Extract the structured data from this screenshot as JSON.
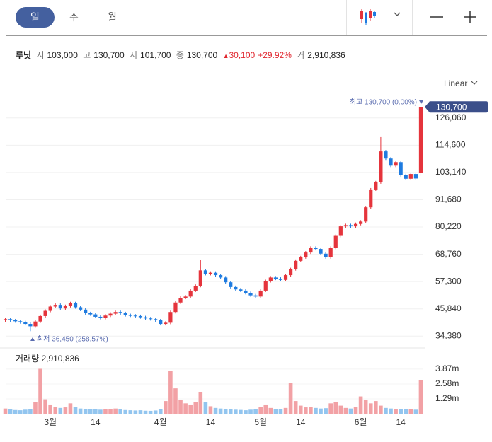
{
  "header": {
    "tabs": [
      "일",
      "주",
      "월"
    ],
    "scale": "Linear"
  },
  "info": {
    "name": "루닛",
    "open_label": "시",
    "open": "103,000",
    "high_label": "고",
    "high": "130,700",
    "low_label": "저",
    "low": "101,700",
    "close_label": "종",
    "close": "130,700",
    "change": "30,100",
    "change_pct": "+29.92%",
    "volume_label": "거",
    "volume": "2,910,836"
  },
  "chart_data": [
    {
      "type": "candlestick",
      "up_color": "#e5343c",
      "down_color": "#1e7be0",
      "open": [
        41000,
        41500,
        41000,
        40600,
        40200,
        39500,
        38500,
        40500,
        42800,
        45000,
        46800,
        47500,
        46000,
        47000,
        48200,
        46500,
        45500,
        44000,
        43500,
        42500,
        42000,
        43000,
        43800,
        44500,
        44000,
        43200,
        43000,
        42800,
        42300,
        41800,
        41500,
        41000,
        39500,
        40000,
        44500,
        48500,
        50500,
        51000,
        53500,
        55500,
        62000,
        60500,
        61000,
        60000,
        59000,
        57000,
        55000,
        54000,
        53500,
        52500,
        51500,
        51000,
        53500,
        57500,
        59000,
        58500,
        58000,
        60000,
        62500,
        66000,
        67500,
        69500,
        71500,
        71000,
        69000,
        67500,
        71500,
        76500,
        80500,
        81000,
        80500,
        81500,
        82500,
        88500,
        96000,
        99000,
        112000,
        109000,
        106000,
        107500,
        102000,
        100500,
        102500,
        103000
      ],
      "high": [
        42100,
        42100,
        41600,
        41200,
        40800,
        40100,
        41100,
        43400,
        45600,
        47400,
        48100,
        48100,
        47600,
        48800,
        48800,
        47100,
        46100,
        44600,
        44100,
        43100,
        43600,
        44400,
        45100,
        45100,
        44600,
        43800,
        43600,
        43400,
        42900,
        42400,
        42100,
        41600,
        40600,
        45100,
        49100,
        51100,
        51600,
        54100,
        56100,
        66500,
        62600,
        61600,
        61600,
        60600,
        59600,
        57600,
        55600,
        54600,
        54100,
        53100,
        52100,
        54100,
        58100,
        59600,
        59600,
        59100,
        60600,
        63100,
        66600,
        68100,
        70100,
        72100,
        72100,
        71600,
        69600,
        72100,
        77100,
        81100,
        81600,
        81600,
        82100,
        83100,
        89100,
        96600,
        99600,
        118000,
        112600,
        109600,
        108100,
        108100,
        102600,
        103100,
        103100,
        130700
      ],
      "low": [
        40400,
        40400,
        40000,
        39600,
        38900,
        36450,
        37900,
        39900,
        42200,
        44400,
        46200,
        45400,
        45400,
        46400,
        45900,
        44900,
        43400,
        42900,
        41900,
        41400,
        41400,
        42400,
        43200,
        43400,
        42600,
        42400,
        42200,
        41700,
        41200,
        40900,
        40400,
        38900,
        38900,
        39400,
        43900,
        47900,
        49900,
        50400,
        52900,
        54900,
        59900,
        59900,
        59400,
        58400,
        56400,
        54400,
        53400,
        52900,
        51900,
        50900,
        50400,
        50400,
        52900,
        56900,
        57900,
        57400,
        57400,
        59400,
        61900,
        65400,
        66900,
        68900,
        70400,
        68400,
        66900,
        66900,
        70900,
        75900,
        79900,
        79900,
        79900,
        80900,
        81900,
        87900,
        95400,
        98400,
        108400,
        105400,
        105400,
        101400,
        99900,
        99900,
        100000,
        101700
      ],
      "close": [
        41500,
        41000,
        40600,
        40200,
        39500,
        38500,
        40500,
        42800,
        45000,
        46800,
        47500,
        46000,
        47000,
        48200,
        46500,
        45500,
        44000,
        43500,
        42500,
        42000,
        43000,
        43800,
        44500,
        44000,
        43200,
        43000,
        42800,
        42300,
        41800,
        41500,
        41000,
        39500,
        40000,
        44500,
        48500,
        50500,
        51000,
        53500,
        55500,
        62000,
        60500,
        61000,
        60000,
        59000,
        57000,
        55000,
        54000,
        53500,
        52500,
        51500,
        51000,
        53500,
        57500,
        59000,
        58500,
        58000,
        60000,
        62500,
        66000,
        67500,
        69500,
        71500,
        71000,
        69000,
        67500,
        71500,
        76500,
        80500,
        81000,
        80500,
        81500,
        82500,
        88500,
        96000,
        99000,
        112000,
        109000,
        106000,
        107500,
        102000,
        100500,
        102500,
        100600,
        130700
      ],
      "ylim": [
        30000,
        137000
      ],
      "yticks": [
        {
          "value": 34380,
          "label": "34,380"
        },
        {
          "value": 45840,
          "label": "45,840"
        },
        {
          "value": 57300,
          "label": "57,300"
        },
        {
          "value": 68760,
          "label": "68,760"
        },
        {
          "value": 80220,
          "label": "80,220"
        },
        {
          "value": 91680,
          "label": "91,680"
        },
        {
          "value": 103140,
          "label": "103,140"
        },
        {
          "value": 114600,
          "label": "114,600"
        },
        {
          "value": 126060,
          "label": "126,060"
        }
      ],
      "grid": true,
      "high_label": "최고 130,700 (0.00%)",
      "low_label": "최저 36,450 (258.57%)",
      "last_price_label": "130,700"
    },
    {
      "type": "bar",
      "title": "거래량 2,910,836",
      "up_color": "#f2a1a5",
      "down_color": "#92c5ef",
      "categories": [
        null,
        null,
        null,
        null,
        null,
        null,
        null,
        null,
        null,
        "3월",
        null,
        null,
        null,
        null,
        null,
        null,
        null,
        null,
        "14",
        null,
        null,
        null,
        null,
        null,
        null,
        null,
        null,
        null,
        null,
        null,
        null,
        "4월",
        null,
        null,
        null,
        null,
        null,
        null,
        null,
        null,
        null,
        "14",
        null,
        null,
        null,
        null,
        null,
        null,
        null,
        null,
        null,
        "5월",
        null,
        null,
        null,
        null,
        null,
        null,
        null,
        "14",
        null,
        null,
        null,
        null,
        null,
        null,
        null,
        null,
        null,
        null,
        null,
        "6월",
        null,
        null,
        null,
        null,
        null,
        null,
        null,
        "14",
        null,
        null,
        null,
        null
      ],
      "values": [
        450000,
        380000,
        320000,
        300000,
        350000,
        420000,
        1000000,
        3900000,
        1250000,
        800000,
        600000,
        500000,
        550000,
        900000,
        600000,
        450000,
        420000,
        380000,
        400000,
        350000,
        380000,
        420000,
        450000,
        380000,
        320000,
        300000,
        280000,
        300000,
        260000,
        250000,
        280000,
        400000,
        1100000,
        3700000,
        2200000,
        1200000,
        900000,
        800000,
        1000000,
        1900000,
        1000000,
        650000,
        500000,
        450000,
        420000,
        380000,
        350000,
        330000,
        300000,
        350000,
        380000,
        600000,
        800000,
        500000,
        420000,
        380000,
        500000,
        2700000,
        1100000,
        700000,
        550000,
        600000,
        500000,
        450000,
        480000,
        900000,
        1000000,
        700000,
        500000,
        450000,
        600000,
        1500000,
        1200000,
        900000,
        1100000,
        700000,
        500000,
        450000,
        420000,
        400000,
        420000,
        380000,
        350000,
        2910836
      ],
      "ylim": [
        0,
        5400000
      ],
      "yticks": [
        {
          "value": 1290000,
          "label": "1.29m"
        },
        {
          "value": 2580000,
          "label": "2.58m"
        },
        {
          "value": 3870000,
          "label": "3.87m"
        }
      ]
    }
  ]
}
